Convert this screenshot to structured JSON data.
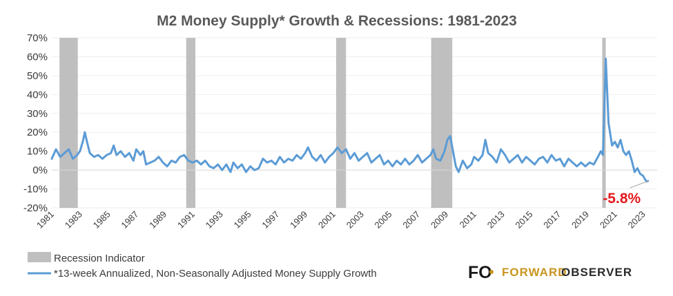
{
  "chart_data": {
    "type": "line",
    "title": "M2 Money Supply* Growth & Recessions: 1981-2023",
    "xlabel": "",
    "ylabel": "",
    "xlim": [
      1981.0,
      2024.0
    ],
    "ylim": [
      -20,
      70
    ],
    "y_ticks": [
      -20,
      -10,
      0,
      10,
      20,
      30,
      40,
      50,
      60,
      70
    ],
    "y_tick_labels": [
      "-20%",
      "-10%",
      "0%",
      "10%",
      "20%",
      "30%",
      "40%",
      "50%",
      "60%",
      "70%"
    ],
    "x_ticks": [
      1981,
      1983,
      1985,
      1987,
      1989,
      1991,
      1993,
      1995,
      1997,
      1999,
      2001,
      2003,
      2005,
      2007,
      2009,
      2011,
      2013,
      2015,
      2017,
      2019,
      2021,
      2023
    ],
    "x_tick_labels": [
      "1981",
      "1983",
      "1985",
      "1987",
      "1989",
      "1991",
      "1993",
      "1995",
      "1997",
      "1999",
      "2001",
      "2003",
      "2005",
      "2007",
      "2009",
      "2011",
      "2013",
      "2015",
      "2017",
      "2019",
      "2021",
      "2023"
    ],
    "recessions": [
      {
        "start": 1981.55,
        "end": 1982.85
      },
      {
        "start": 1990.55,
        "end": 1991.2
      },
      {
        "start": 2001.2,
        "end": 2001.9
      },
      {
        "start": 2007.95,
        "end": 2009.45
      },
      {
        "start": 2020.1,
        "end": 2020.35
      }
    ],
    "series": [
      {
        "name": "*13-week Annualized, Non-Seasonally Adjusted Money Supply Growth",
        "color": "#5b9bd5",
        "points": [
          [
            1981.0,
            6
          ],
          [
            1981.3,
            11
          ],
          [
            1981.6,
            7
          ],
          [
            1981.9,
            9
          ],
          [
            1982.2,
            11
          ],
          [
            1982.5,
            6
          ],
          [
            1982.8,
            8
          ],
          [
            1983.0,
            10
          ],
          [
            1983.2,
            15
          ],
          [
            1983.35,
            20
          ],
          [
            1983.5,
            15
          ],
          [
            1983.7,
            9
          ],
          [
            1984.0,
            7
          ],
          [
            1984.3,
            8
          ],
          [
            1984.6,
            6
          ],
          [
            1984.9,
            8
          ],
          [
            1985.2,
            9
          ],
          [
            1985.4,
            13
          ],
          [
            1985.6,
            8
          ],
          [
            1985.9,
            10
          ],
          [
            1986.2,
            7
          ],
          [
            1986.5,
            9
          ],
          [
            1986.8,
            5
          ],
          [
            1987.0,
            11
          ],
          [
            1987.3,
            8
          ],
          [
            1987.5,
            10
          ],
          [
            1987.7,
            3
          ],
          [
            1988.0,
            4
          ],
          [
            1988.3,
            5
          ],
          [
            1988.6,
            7
          ],
          [
            1988.9,
            4
          ],
          [
            1989.2,
            2
          ],
          [
            1989.5,
            5
          ],
          [
            1989.8,
            4
          ],
          [
            1990.1,
            7
          ],
          [
            1990.4,
            8
          ],
          [
            1990.7,
            5
          ],
          [
            1991.0,
            4
          ],
          [
            1991.3,
            5
          ],
          [
            1991.6,
            3
          ],
          [
            1991.9,
            5
          ],
          [
            1992.2,
            2
          ],
          [
            1992.5,
            1
          ],
          [
            1992.8,
            3
          ],
          [
            1993.1,
            0
          ],
          [
            1993.4,
            3
          ],
          [
            1993.7,
            -1
          ],
          [
            1993.9,
            4
          ],
          [
            1994.2,
            1
          ],
          [
            1994.5,
            3
          ],
          [
            1994.8,
            -1
          ],
          [
            1995.1,
            2
          ],
          [
            1995.4,
            0
          ],
          [
            1995.7,
            1
          ],
          [
            1996.0,
            6
          ],
          [
            1996.3,
            4
          ],
          [
            1996.6,
            5
          ],
          [
            1996.9,
            3
          ],
          [
            1997.2,
            7
          ],
          [
            1997.5,
            4
          ],
          [
            1997.8,
            6
          ],
          [
            1998.1,
            5
          ],
          [
            1998.4,
            8
          ],
          [
            1998.7,
            6
          ],
          [
            1999.0,
            9
          ],
          [
            1999.2,
            12
          ],
          [
            1999.5,
            7
          ],
          [
            1999.8,
            5
          ],
          [
            2000.1,
            8
          ],
          [
            2000.4,
            4
          ],
          [
            2000.7,
            7
          ],
          [
            2001.0,
            9
          ],
          [
            2001.3,
            12
          ],
          [
            2001.6,
            9
          ],
          [
            2001.9,
            11
          ],
          [
            2002.2,
            6
          ],
          [
            2002.5,
            9
          ],
          [
            2002.8,
            5
          ],
          [
            2003.1,
            7
          ],
          [
            2003.4,
            9
          ],
          [
            2003.7,
            4
          ],
          [
            2004.0,
            6
          ],
          [
            2004.3,
            8
          ],
          [
            2004.6,
            3
          ],
          [
            2004.9,
            5
          ],
          [
            2005.2,
            2
          ],
          [
            2005.5,
            5
          ],
          [
            2005.8,
            3
          ],
          [
            2006.1,
            6
          ],
          [
            2006.4,
            3
          ],
          [
            2006.7,
            5
          ],
          [
            2007.0,
            8
          ],
          [
            2007.3,
            4
          ],
          [
            2007.6,
            6
          ],
          [
            2007.9,
            8
          ],
          [
            2008.1,
            11
          ],
          [
            2008.3,
            6
          ],
          [
            2008.6,
            5
          ],
          [
            2008.9,
            10
          ],
          [
            2009.1,
            16
          ],
          [
            2009.3,
            18
          ],
          [
            2009.5,
            10
          ],
          [
            2009.7,
            2
          ],
          [
            2009.9,
            -1
          ],
          [
            2010.2,
            5
          ],
          [
            2010.5,
            1
          ],
          [
            2010.8,
            3
          ],
          [
            2011.0,
            7
          ],
          [
            2011.3,
            5
          ],
          [
            2011.6,
            8
          ],
          [
            2011.8,
            16
          ],
          [
            2012.0,
            9
          ],
          [
            2012.3,
            7
          ],
          [
            2012.6,
            4
          ],
          [
            2012.9,
            11
          ],
          [
            2013.2,
            8
          ],
          [
            2013.5,
            4
          ],
          [
            2013.8,
            6
          ],
          [
            2014.1,
            8
          ],
          [
            2014.4,
            4
          ],
          [
            2014.7,
            7
          ],
          [
            2015.0,
            5
          ],
          [
            2015.3,
            3
          ],
          [
            2015.6,
            6
          ],
          [
            2015.9,
            7
          ],
          [
            2016.2,
            4
          ],
          [
            2016.5,
            8
          ],
          [
            2016.8,
            5
          ],
          [
            2017.1,
            6
          ],
          [
            2017.4,
            2
          ],
          [
            2017.7,
            6
          ],
          [
            2018.0,
            4
          ],
          [
            2018.3,
            2
          ],
          [
            2018.6,
            4
          ],
          [
            2018.9,
            2
          ],
          [
            2019.2,
            4
          ],
          [
            2019.5,
            3
          ],
          [
            2019.8,
            7
          ],
          [
            2020.0,
            10
          ],
          [
            2020.15,
            8
          ],
          [
            2020.35,
            59
          ],
          [
            2020.55,
            25
          ],
          [
            2020.8,
            13
          ],
          [
            2021.0,
            15
          ],
          [
            2021.2,
            12
          ],
          [
            2021.4,
            16
          ],
          [
            2021.6,
            10
          ],
          [
            2021.8,
            8
          ],
          [
            2022.0,
            10
          ],
          [
            2022.2,
            5
          ],
          [
            2022.4,
            -1
          ],
          [
            2022.6,
            1
          ],
          [
            2022.8,
            -2
          ],
          [
            2023.0,
            -3
          ],
          [
            2023.15,
            -5
          ],
          [
            2023.25,
            -6
          ],
          [
            2023.35,
            -5.8
          ]
        ]
      }
    ],
    "recession_color": "#bfbfbf",
    "annotation": {
      "label": "-5.8%",
      "x": 2023.35,
      "y": -5.8,
      "color": "#e3191c"
    }
  },
  "legend": {
    "recession_label": "Recession Indicator",
    "series_label": "*13-week Annualized, Non-Seasonally Adjusted Money Supply Growth"
  },
  "logo": {
    "mark": "FO",
    "word1": "FORWARD",
    "word2": "OBSERVER",
    "word1_color": "#c8951f",
    "word2_color": "#2a2a2a"
  }
}
